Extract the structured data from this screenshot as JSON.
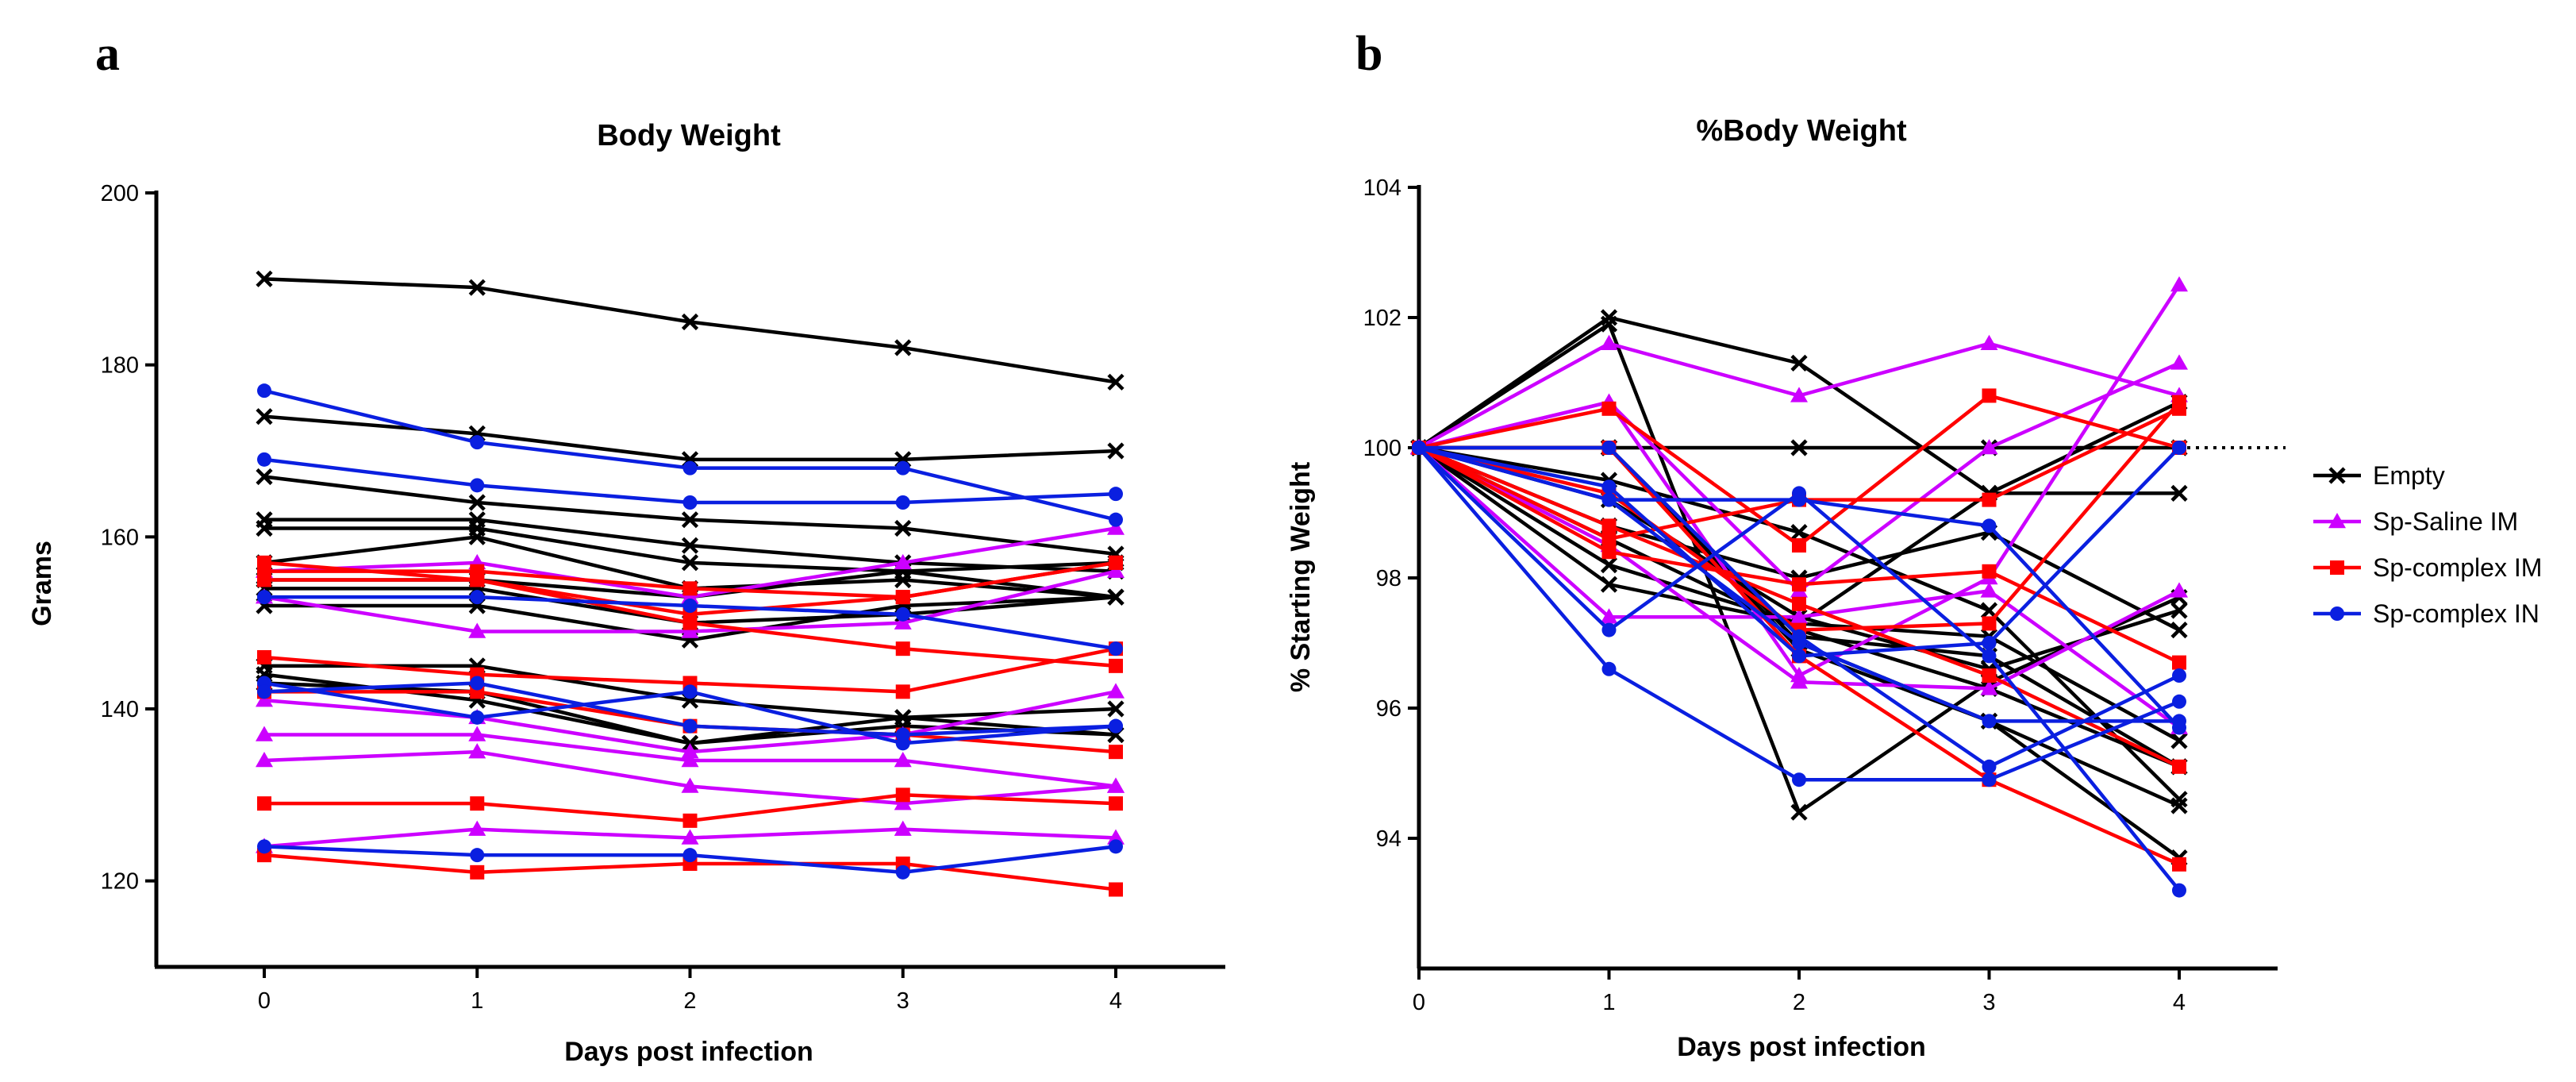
{
  "chart_data": [
    {
      "type": "line",
      "panel": "a",
      "title": "Body Weight",
      "xlabel": "Days post infection",
      "ylabel": "Grams",
      "x": [
        0,
        1,
        2,
        3,
        4
      ],
      "xticks": [
        "0",
        "1",
        "2",
        "3",
        "4"
      ],
      "ylim": [
        110,
        200
      ],
      "yticks": [
        120,
        140,
        160,
        180,
        200
      ],
      "series": [
        {
          "group": "Empty",
          "values": [
            190,
            189,
            185,
            182,
            178
          ]
        },
        {
          "group": "Empty",
          "values": [
            174,
            172,
            169,
            169,
            170
          ]
        },
        {
          "group": "Empty",
          "values": [
            167,
            164,
            162,
            161,
            158
          ]
        },
        {
          "group": "Empty",
          "values": [
            162,
            162,
            159,
            157,
            156
          ]
        },
        {
          "group": "Empty",
          "values": [
            161,
            161,
            157,
            156,
            157
          ]
        },
        {
          "group": "Empty",
          "values": [
            157,
            160,
            154,
            155,
            153
          ]
        },
        {
          "group": "Empty",
          "values": [
            155,
            155,
            153,
            156,
            153
          ]
        },
        {
          "group": "Empty",
          "values": [
            154,
            154,
            150,
            151,
            153
          ]
        },
        {
          "group": "Empty",
          "values": [
            152,
            152,
            148,
            152,
            153
          ]
        },
        {
          "group": "Empty",
          "values": [
            145,
            145,
            141,
            139,
            140
          ]
        },
        {
          "group": "Empty",
          "values": [
            144,
            141,
            136,
            138,
            137
          ]
        },
        {
          "group": "Empty",
          "values": [
            143,
            142,
            136,
            139,
            137
          ]
        },
        {
          "group": "Sp-Saline IM",
          "values": [
            153,
            149,
            149,
            150,
            156
          ]
        },
        {
          "group": "Sp-Saline IM",
          "values": [
            141,
            139,
            135,
            137,
            142
          ]
        },
        {
          "group": "Sp-Saline IM",
          "values": [
            137,
            137,
            134,
            134,
            131
          ]
        },
        {
          "group": "Sp-Saline IM",
          "values": [
            134,
            135,
            131,
            129,
            131
          ]
        },
        {
          "group": "Sp-Saline IM",
          "values": [
            124,
            126,
            125,
            126,
            125
          ]
        },
        {
          "group": "Sp-Saline IM",
          "values": [
            156,
            157,
            153,
            157,
            161
          ]
        },
        {
          "group": "Sp-complex IM",
          "values": [
            156,
            156,
            154,
            153,
            157
          ]
        },
        {
          "group": "Sp-complex IM",
          "values": [
            155,
            155,
            151,
            153,
            157
          ]
        },
        {
          "group": "Sp-complex IM",
          "values": [
            146,
            144,
            143,
            142,
            147
          ]
        },
        {
          "group": "Sp-complex IM",
          "values": [
            142,
            142,
            138,
            137,
            135
          ]
        },
        {
          "group": "Sp-complex IM",
          "values": [
            129,
            129,
            127,
            130,
            129
          ]
        },
        {
          "group": "Sp-complex IM",
          "values": [
            123,
            121,
            122,
            122,
            119
          ]
        },
        {
          "group": "Sp-complex IM",
          "values": [
            157,
            155,
            150,
            147,
            145
          ]
        },
        {
          "group": "Sp-complex IN",
          "values": [
            177,
            171,
            168,
            168,
            162
          ]
        },
        {
          "group": "Sp-complex IN",
          "values": [
            169,
            166,
            164,
            164,
            165
          ]
        },
        {
          "group": "Sp-complex IN",
          "values": [
            153,
            153,
            152,
            151,
            147
          ]
        },
        {
          "group": "Sp-complex IN",
          "values": [
            143,
            139,
            142,
            136,
            138
          ]
        },
        {
          "group": "Sp-complex IN",
          "values": [
            124,
            123,
            123,
            121,
            124
          ]
        },
        {
          "group": "Sp-complex IN",
          "values": [
            142,
            143,
            138,
            137,
            138
          ]
        }
      ]
    },
    {
      "type": "line",
      "panel": "b",
      "title": "%Body Weight",
      "xlabel": "Days post infection",
      "ylabel": "% Starting Weight",
      "x": [
        0,
        1,
        2,
        3,
        4
      ],
      "xticks": [
        "0",
        "1",
        "2",
        "3",
        "4"
      ],
      "ylim": [
        92,
        104
      ],
      "yticks": [
        94,
        96,
        98,
        100,
        102,
        104
      ],
      "reference_line": 100,
      "series": [
        {
          "group": "Empty",
          "values": [
            100,
            102.0,
            101.3,
            99.3,
            99.3
          ]
        },
        {
          "group": "Empty",
          "values": [
            100,
            101.9,
            94.4,
            96.4,
            97.7
          ]
        },
        {
          "group": "Empty",
          "values": [
            100,
            100,
            100,
            100,
            100
          ]
        },
        {
          "group": "Empty",
          "values": [
            100,
            99.5,
            98.7,
            97.5,
            94.6
          ]
        },
        {
          "group": "Empty",
          "values": [
            100,
            98.8,
            98.0,
            98.7,
            97.2
          ]
        },
        {
          "group": "Empty",
          "values": [
            100,
            98.2,
            97.3,
            99.3,
            100.7
          ]
        },
        {
          "group": "Empty",
          "values": [
            100,
            97.9,
            97.3,
            97.1,
            95.5
          ]
        },
        {
          "group": "Empty",
          "values": [
            100,
            100,
            97.1,
            96.8,
            95.1
          ]
        },
        {
          "group": "Empty",
          "values": [
            100,
            100,
            97.0,
            95.8,
            93.7
          ]
        },
        {
          "group": "Empty",
          "values": [
            100,
            99.2,
            97.4,
            96.6,
            97.5
          ]
        },
        {
          "group": "Empty",
          "values": [
            100,
            98.6,
            97.2,
            96.3,
            95.1
          ]
        },
        {
          "group": "Empty",
          "values": [
            100,
            100,
            96.9,
            95.8,
            94.5
          ]
        },
        {
          "group": "Sp-Saline IM",
          "values": [
            100,
            101.6,
            100.8,
            101.6,
            100.8
          ]
        },
        {
          "group": "Sp-Saline IM",
          "values": [
            100,
            100.7,
            96.5,
            98.0,
            102.5
          ]
        },
        {
          "group": "Sp-Saline IM",
          "values": [
            100,
            100.7,
            97.8,
            100.0,
            101.3
          ]
        },
        {
          "group": "Sp-Saline IM",
          "values": [
            100,
            97.4,
            97.4,
            97.8,
            95.7
          ]
        },
        {
          "group": "Sp-Saline IM",
          "values": [
            100,
            98.5,
            96.4,
            96.3,
            97.8
          ]
        },
        {
          "group": "Sp-complex IM",
          "values": [
            100,
            100.6,
            98.5,
            100.8,
            100.0
          ]
        },
        {
          "group": "Sp-complex IM",
          "values": [
            100,
            98.6,
            99.2,
            99.2,
            100.6
          ]
        },
        {
          "group": "Sp-complex IM",
          "values": [
            100,
            98.4,
            97.9,
            98.1,
            96.7
          ]
        },
        {
          "group": "Sp-complex IM",
          "values": [
            100,
            100,
            96.8,
            94.9,
            93.6
          ]
        },
        {
          "group": "Sp-complex IM",
          "values": [
            100,
            99.3,
            97.2,
            97.3,
            100.7
          ]
        },
        {
          "group": "Sp-complex IM",
          "values": [
            100,
            98.8,
            97.6,
            96.5,
            95.1
          ]
        },
        {
          "group": "Sp-complex IN",
          "values": [
            100,
            96.6,
            94.9,
            94.9,
            96.1
          ]
        },
        {
          "group": "Sp-complex IN",
          "values": [
            100,
            97.2,
            99.3,
            96.8,
            93.2
          ]
        },
        {
          "group": "Sp-complex IN",
          "values": [
            100,
            99.2,
            99.2,
            98.8,
            95.7
          ]
        },
        {
          "group": "Sp-complex IN",
          "values": [
            100,
            99.2,
            97.0,
            95.8,
            95.8
          ]
        },
        {
          "group": "Sp-complex IN",
          "values": [
            100,
            99.4,
            96.8,
            97.0,
            100.0
          ]
        },
        {
          "group": "Sp-complex IN",
          "values": [
            100,
            100,
            97.1,
            95.1,
            96.5
          ]
        }
      ]
    }
  ],
  "legend": [
    {
      "label": "Empty",
      "color": "#000000",
      "marker": "cross"
    },
    {
      "label": "Sp-Saline IM",
      "color": "#cc00ff",
      "marker": "triangle"
    },
    {
      "label": "Sp-complex IM",
      "color": "#ff0000",
      "marker": "square"
    },
    {
      "label": "Sp-complex IN",
      "color": "#0a1fe0",
      "marker": "circle"
    }
  ]
}
